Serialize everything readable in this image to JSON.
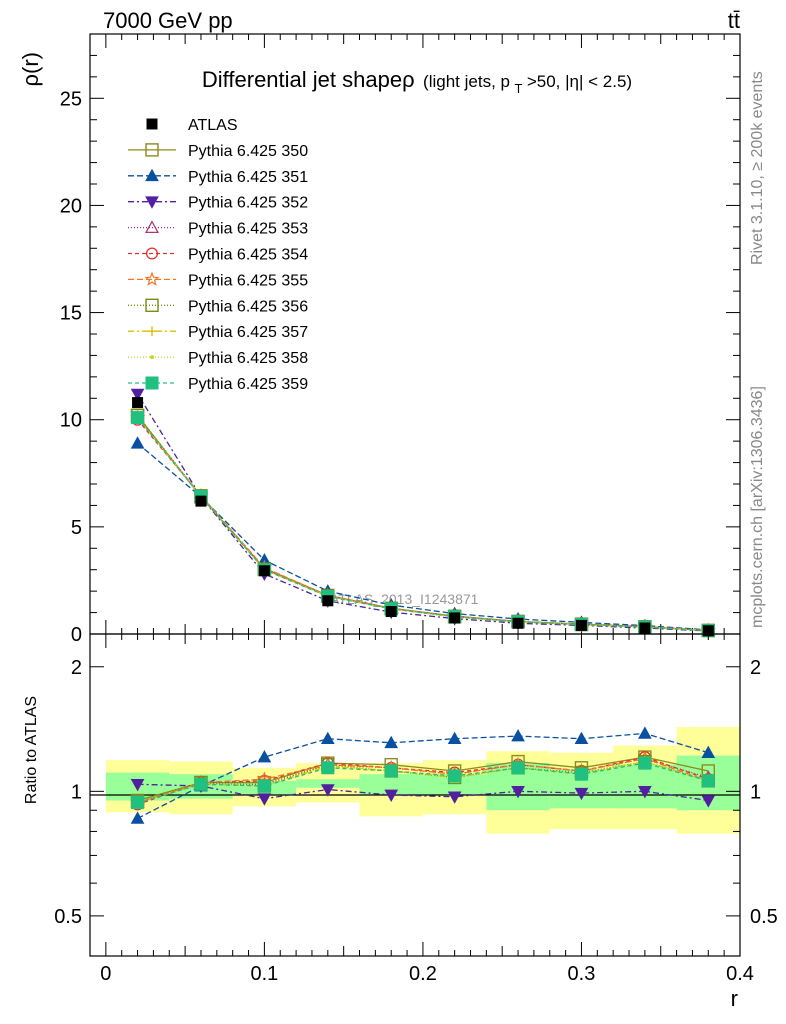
{
  "header": {
    "energy_label": "7000 GeV pp",
    "process_label": "tt̄"
  },
  "side_labels": {
    "rivet": "Rivet 3.1.10, ≥ 200k events",
    "mcplots": "mcplots.cern.ch [arXiv:1306.3436]"
  },
  "chart_data": [
    {
      "type": "line",
      "title": "Differential jet shapeρ",
      "subtitle": "(light jets, p_T>50, |η| < 2.5)",
      "title_parts": {
        "main": "Differential jet shapeρ",
        "sub_a": "(light jets, p",
        "sub_sub": "T",
        "sub_b": ">50, |η| < 2.5)"
      },
      "ylabel": "ρ(r)",
      "xlabel": "r",
      "xlim": [
        -0.01,
        0.4
      ],
      "ylim": [
        0,
        28
      ],
      "yticks": [
        0,
        5,
        10,
        15,
        20,
        25
      ],
      "ytick_labels": [
        "0",
        "5",
        "10",
        "15",
        "20",
        "25"
      ],
      "legend_position": "top-left",
      "watermark": "ATLAS_2013_I1243871",
      "x": [
        0.02,
        0.06,
        0.1,
        0.14,
        0.18,
        0.22,
        0.26,
        0.3,
        0.34,
        0.38
      ],
      "data": {
        "name": "ATLAS",
        "values": [
          10.8,
          6.2,
          2.95,
          1.55,
          1.05,
          0.75,
          0.5,
          0.4,
          0.28,
          0.15
        ]
      },
      "series": [
        {
          "name": "Pythia 6.425 350",
          "color": "#8c8c1e",
          "marker": "square-open",
          "dash": "",
          "values": [
            10.2,
            6.4,
            3.05,
            1.8,
            1.2,
            0.83,
            0.59,
            0.46,
            0.34,
            0.17
          ]
        },
        {
          "name": "Pythia 6.425 351",
          "color": "#0a50a0",
          "marker": "triangle-up",
          "dash": "6,3",
          "values": [
            8.9,
            6.4,
            3.45,
            2.0,
            1.35,
            0.95,
            0.7,
            0.54,
            0.39,
            0.19
          ]
        },
        {
          "name": "Pythia 6.425 352",
          "color": "#5020a0",
          "marker": "triangle-down",
          "dash": "6,3,2,3",
          "values": [
            11.2,
            6.4,
            2.8,
            1.55,
            1.02,
            0.72,
            0.5,
            0.4,
            0.28,
            0.14
          ]
        },
        {
          "name": "Pythia 6.425 353",
          "color": "#b0307a",
          "marker": "triangle-open",
          "dash": "1,2",
          "values": [
            10.1,
            6.4,
            3.0,
            1.78,
            1.19,
            0.82,
            0.58,
            0.45,
            0.34,
            0.16
          ]
        },
        {
          "name": "Pythia 6.425 354",
          "color": "#e03030",
          "marker": "circle-open",
          "dash": "4,3",
          "values": [
            10.0,
            6.45,
            3.05,
            1.8,
            1.2,
            0.83,
            0.58,
            0.46,
            0.34,
            0.16
          ]
        },
        {
          "name": "Pythia 6.425 355",
          "color": "#f07828",
          "marker": "star-open",
          "dash": "6,3",
          "values": [
            10.1,
            6.45,
            3.1,
            1.79,
            1.2,
            0.82,
            0.58,
            0.45,
            0.33,
            0.16
          ]
        },
        {
          "name": "Pythia 6.425 356",
          "color": "#7a8c14",
          "marker": "square-open",
          "dash": "1,2",
          "values": [
            10.2,
            6.45,
            3.02,
            1.78,
            1.18,
            0.8,
            0.57,
            0.44,
            0.33,
            0.16
          ]
        },
        {
          "name": "Pythia 6.425 357",
          "color": "#d8c000",
          "marker": "plus",
          "dash": "6,3,2,3",
          "values": [
            10.1,
            6.42,
            3.0,
            1.77,
            1.17,
            0.8,
            0.57,
            0.44,
            0.33,
            0.16
          ]
        },
        {
          "name": "Pythia 6.425 358",
          "color": "#c8d820",
          "marker": "dot",
          "dash": "1,2",
          "values": [
            10.1,
            6.42,
            3.0,
            1.77,
            1.17,
            0.81,
            0.57,
            0.44,
            0.33,
            0.16
          ]
        },
        {
          "name": "Pythia 6.425 359",
          "color": "#20c080",
          "marker": "square",
          "dash": "4,3",
          "values": [
            10.1,
            6.42,
            3.0,
            1.75,
            1.17,
            0.81,
            0.57,
            0.44,
            0.33,
            0.16
          ]
        }
      ]
    },
    {
      "type": "line",
      "ylabel": "Ratio to ATLAS",
      "xlabel": "r",
      "xlim": [
        -0.01,
        0.4
      ],
      "ylim": [
        0.4,
        2.4
      ],
      "ytick_values": [
        0.5,
        1,
        2
      ],
      "ytick_labels": [
        "0.5",
        "1",
        "2"
      ],
      "xtick_values": [
        0,
        0.1,
        0.2,
        0.3,
        0.4
      ],
      "xtick_labels": [
        "0",
        "0.1",
        "0.2",
        "0.3",
        "0.4"
      ],
      "bin_edges": [
        0.0,
        0.04,
        0.08,
        0.12,
        0.16,
        0.2,
        0.24,
        0.28,
        0.32,
        0.36,
        0.4
      ],
      "band_stat": {
        "lo": [
          0.95,
          0.96,
          0.98,
          1.02,
          0.98,
          0.98,
          0.9,
          0.91,
          0.91,
          0.9
        ],
        "hi": [
          1.11,
          1.1,
          1.06,
          1.07,
          1.1,
          1.1,
          1.17,
          1.13,
          1.16,
          1.22
        ]
      },
      "band_total": {
        "lo": [
          0.89,
          0.88,
          0.92,
          0.94,
          0.87,
          0.88,
          0.79,
          0.81,
          0.81,
          0.79
        ],
        "hi": [
          1.19,
          1.18,
          1.14,
          1.17,
          1.17,
          1.19,
          1.25,
          1.24,
          1.29,
          1.43
        ]
      },
      "x": [
        0.02,
        0.06,
        0.1,
        0.14,
        0.18,
        0.22,
        0.26,
        0.3,
        0.34,
        0.38
      ],
      "series": [
        {
          "name": "Pythia 6.425 350",
          "values": [
            0.95,
            1.05,
            1.05,
            1.17,
            1.16,
            1.12,
            1.18,
            1.14,
            1.21,
            1.12
          ]
        },
        {
          "name": "Pythia 6.425 351",
          "values": [
            0.86,
            1.03,
            1.21,
            1.34,
            1.31,
            1.34,
            1.36,
            1.34,
            1.38,
            1.24
          ]
        },
        {
          "name": "Pythia 6.425 352",
          "values": [
            1.04,
            1.03,
            0.96,
            1.01,
            0.98,
            0.97,
            1.0,
            0.99,
            1.0,
            0.95
          ]
        },
        {
          "name": "Pythia 6.425 353",
          "values": [
            0.94,
            1.04,
            1.04,
            1.16,
            1.14,
            1.1,
            1.16,
            1.12,
            1.2,
            1.08
          ]
        },
        {
          "name": "Pythia 6.425 354",
          "values": [
            0.93,
            1.05,
            1.06,
            1.17,
            1.14,
            1.11,
            1.16,
            1.12,
            1.21,
            1.07
          ]
        },
        {
          "name": "Pythia 6.425 355",
          "values": [
            0.94,
            1.05,
            1.07,
            1.16,
            1.14,
            1.1,
            1.16,
            1.12,
            1.2,
            1.06
          ]
        },
        {
          "name": "Pythia 6.425 356",
          "values": [
            0.95,
            1.05,
            1.03,
            1.16,
            1.12,
            1.08,
            1.14,
            1.11,
            1.18,
            1.06
          ]
        },
        {
          "name": "Pythia 6.425 357",
          "values": [
            0.94,
            1.04,
            1.03,
            1.15,
            1.12,
            1.08,
            1.14,
            1.1,
            1.18,
            1.06
          ]
        },
        {
          "name": "Pythia 6.425 358",
          "values": [
            0.94,
            1.04,
            1.03,
            1.15,
            1.12,
            1.09,
            1.14,
            1.1,
            1.18,
            1.06
          ]
        },
        {
          "name": "Pythia 6.425 359",
          "values": [
            0.94,
            1.04,
            1.03,
            1.14,
            1.12,
            1.09,
            1.14,
            1.1,
            1.17,
            1.06
          ]
        }
      ]
    }
  ]
}
